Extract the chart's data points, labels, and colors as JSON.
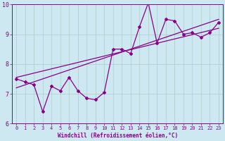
{
  "xlabel": "Windchill (Refroidissement éolien,°C)",
  "bg_color": "#cde8f0",
  "line_color": "#880088",
  "grid_color": "#aacccc",
  "xlim": [
    -0.5,
    23.5
  ],
  "ylim": [
    6,
    10
  ],
  "xticks": [
    0,
    1,
    2,
    3,
    4,
    5,
    6,
    7,
    8,
    9,
    10,
    11,
    12,
    13,
    14,
    15,
    16,
    17,
    18,
    19,
    20,
    21,
    22,
    23
  ],
  "yticks": [
    6,
    7,
    8,
    9,
    10
  ],
  "data_x": [
    0,
    1,
    2,
    3,
    4,
    5,
    6,
    7,
    8,
    9,
    10,
    11,
    12,
    13,
    14,
    15,
    16,
    17,
    18,
    19,
    20,
    21,
    22,
    23
  ],
  "data_y": [
    7.5,
    7.4,
    7.3,
    6.4,
    7.25,
    7.1,
    7.55,
    7.1,
    6.85,
    6.8,
    7.05,
    8.5,
    8.5,
    8.35,
    9.25,
    10.05,
    8.7,
    9.5,
    9.45,
    9.0,
    9.05,
    8.9,
    9.05,
    9.4
  ],
  "trend1_x": [
    0,
    23
  ],
  "trend1_y": [
    7.2,
    9.5
  ],
  "trend2_x": [
    0,
    23
  ],
  "trend2_y": [
    7.55,
    9.2
  ]
}
